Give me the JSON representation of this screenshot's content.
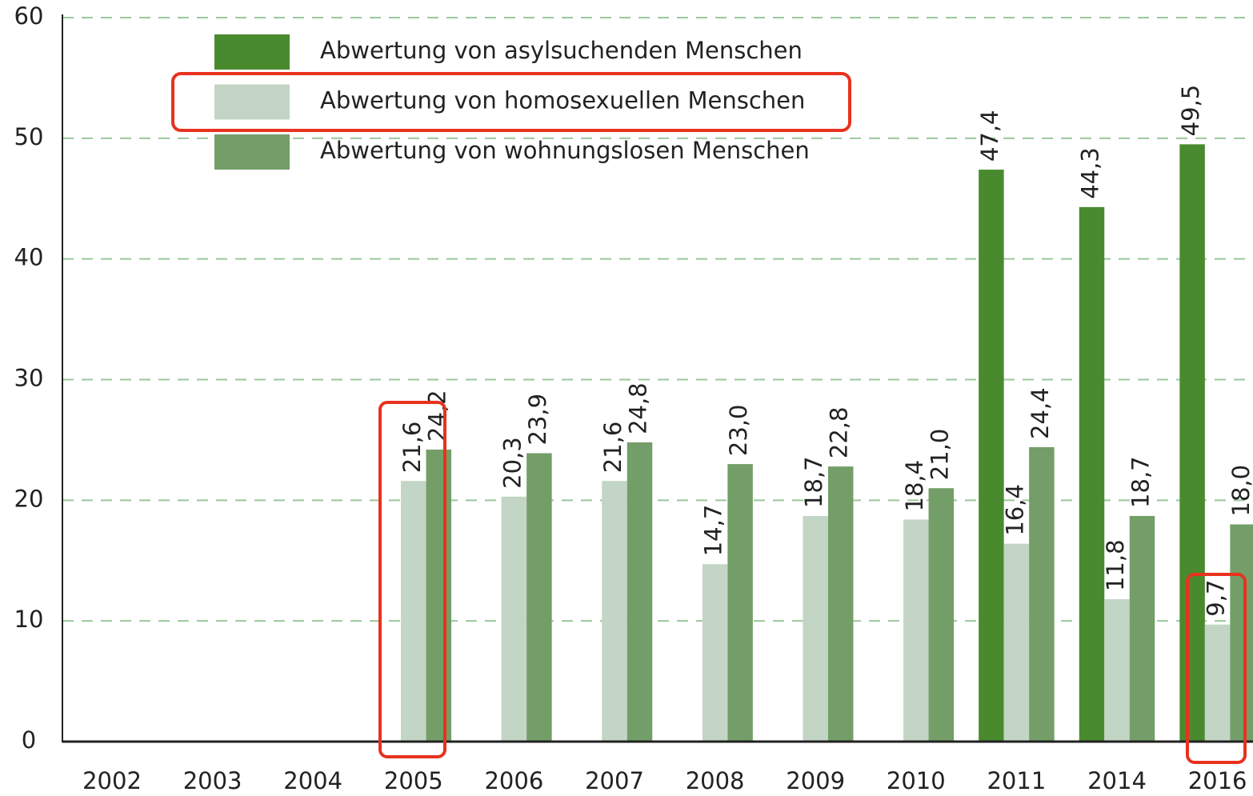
{
  "chart_data": {
    "type": "bar",
    "categories": [
      "2002",
      "2003",
      "2004",
      "2005",
      "2006",
      "2007",
      "2008",
      "2009",
      "2010",
      "2011",
      "2014",
      "2016"
    ],
    "series": [
      {
        "name": "Abwertung von asylsuchenden Menschen",
        "color": "#4a8a2e",
        "values": [
          null,
          null,
          null,
          null,
          null,
          null,
          null,
          null,
          null,
          47.4,
          44.3,
          49.5
        ],
        "value_labels": [
          null,
          null,
          null,
          null,
          null,
          null,
          null,
          null,
          null,
          "47,4",
          "44,3",
          "49,5"
        ]
      },
      {
        "name": "Abwertung von homosexuellen Menschen",
        "color": "#c3d5c5",
        "values": [
          null,
          null,
          null,
          21.6,
          20.3,
          21.6,
          14.7,
          18.7,
          18.4,
          16.4,
          11.8,
          9.7
        ],
        "value_labels": [
          null,
          null,
          null,
          "21,6",
          "20,3",
          "21,6",
          "14,7",
          "18,7",
          "18,4",
          "16,4",
          "11,8",
          "9,7"
        ]
      },
      {
        "name": "Abwertung von wohnungslosen Menschen",
        "color": "#739e68",
        "values": [
          null,
          null,
          null,
          24.2,
          23.9,
          24.8,
          23.0,
          22.8,
          21.0,
          24.4,
          18.7,
          18.0
        ],
        "value_labels": [
          null,
          null,
          null,
          "24,2",
          "23,9",
          "24,8",
          "23,0",
          "22,8",
          "21,0",
          "24,4",
          "18,7",
          "18,0"
        ]
      }
    ],
    "ylim": [
      0,
      60
    ],
    "yticks": [
      0,
      10,
      20,
      30,
      40,
      50,
      60
    ],
    "grid": true,
    "legend": "upper-left"
  }
}
